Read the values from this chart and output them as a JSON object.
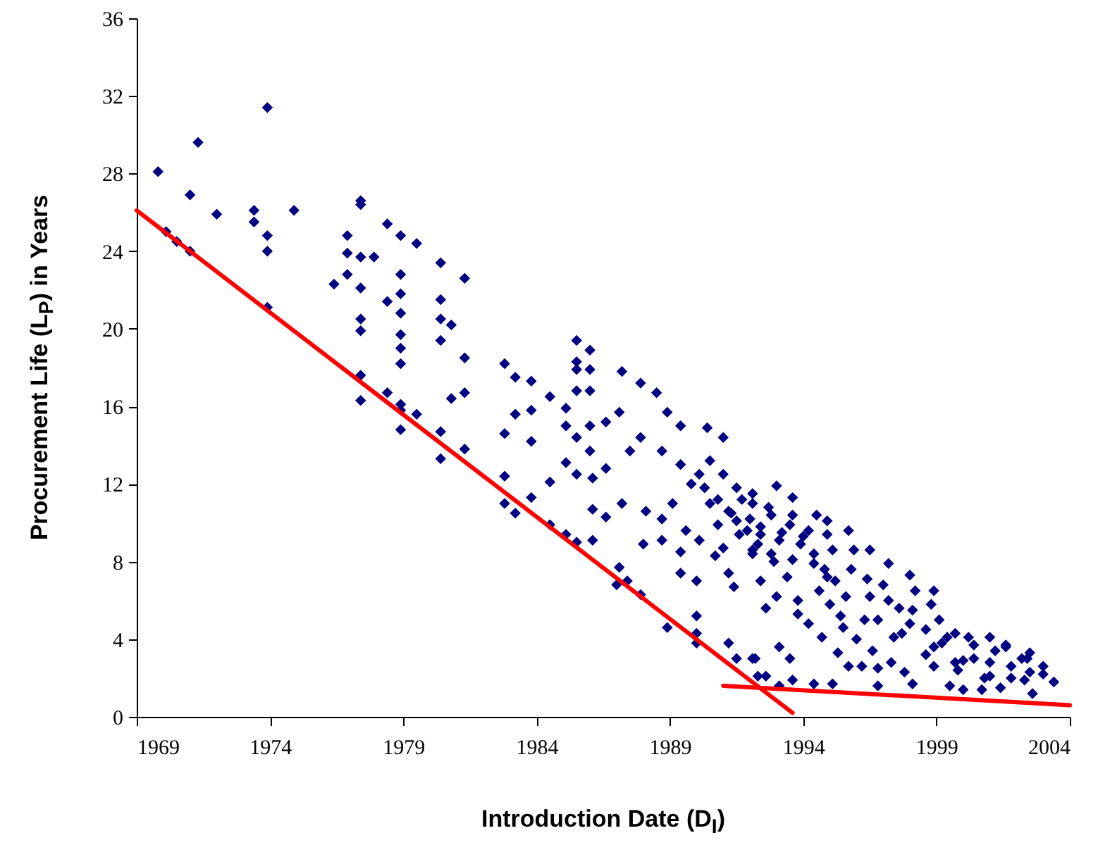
{
  "chart_data": {
    "type": "scatter",
    "xlabel": "Introduction Date (D$_{I}$)",
    "ylabel": "Procurement Life (L$_{P}$) in Years",
    "xlim": [
      1969,
      2004
    ],
    "ylim": [
      0,
      36
    ],
    "xticks": [
      1969,
      1974,
      1979,
      1984,
      1989,
      1994,
      1999,
      2004
    ],
    "yticks": [
      0,
      4,
      8,
      12,
      16,
      20,
      24,
      28,
      32,
      36
    ],
    "series": [
      {
        "color": "#000080",
        "marker": "diamond",
        "x": [
          1990.3,
          1990.8,
          1991.3,
          1991.7,
          1992.0,
          1992.4,
          1992.8,
          1993.2,
          1993.6,
          1994.0,
          1994.4,
          1994.8,
          1991.0,
          1991.6,
          1992.3,
          1992.9,
          1993.4,
          1993.9,
          1994.6,
          1995.2,
          1995.8,
          1996.4,
          1997.0,
          1997.6,
          1998.2,
          1998.8,
          1995.0,
          1995.5,
          1996.0,
          1996.8,
          1997.4,
          1998.0,
          1998.6,
          1999.2,
          1999.8,
          2000.4,
          2001.2,
          2001.8,
          2002.4,
          2003.0,
          2000.0,
          2000.8,
          2001.6,
          2002.2,
          1999.4,
          1996.6,
          1997.8,
          1995.3,
          1993.8,
          1992.6,
          1969.8,
          1971.3,
          1971.0,
          1970.1,
          1970.5,
          1971.0,
          1972.0,
          1973.4,
          1973.4,
          1973.9,
          1973.9,
          1973.9,
          1973.9,
          1974.9,
          1976.4,
          1976.9,
          1976.9,
          1976.9,
          1977.4,
          1977.4,
          1977.4,
          1977.9,
          1977.4,
          1977.4,
          1977.4,
          1977.4,
          1977.4,
          1978.4,
          1978.4,
          1978.9,
          1978.9,
          1978.9,
          1978.9,
          1978.9,
          1978.9,
          1978.9,
          1978.4,
          1978.9,
          1978.9,
          1979.5,
          1978.9,
          1979.5,
          1980.4,
          1980.4,
          1980.4,
          1980.8,
          1980.4,
          1980.4,
          1980.4,
          1980.8,
          1981.3,
          1981.3,
          1981.3,
          1981.3,
          1985.5,
          1985.5,
          1985.5,
          1985.5,
          1986.0,
          1986.0,
          1986.0,
          1982.8,
          1983.2,
          1983.8,
          1984.5,
          1985.1,
          1983.2,
          1983.8,
          1982.8,
          1983.8,
          1985.1,
          1985.5,
          1986.0,
          1986.0,
          1987.2,
          1987.9,
          1988.5,
          1987.1,
          1986.6,
          1985.1,
          1982.8,
          1984.5,
          1985.5,
          1986.1,
          1986.6,
          1983.8,
          1982.8,
          1983.2,
          1986.1,
          1986.6,
          1987.2,
          1984.5,
          1985.1,
          1985.5,
          1986.1,
          1988.1,
          1988.7,
          1988.0,
          1987.1,
          1987.4,
          1987.0,
          1987.9,
          1988.9,
          1990.0,
          1990.0,
          1990.0,
          1991.2,
          1991.5,
          1992.1,
          1992.3,
          1989.4,
          1990.0,
          1990.4,
          1991.0,
          1988.9,
          1989.4,
          1987.9,
          1987.5,
          1988.7,
          1989.4,
          1989.8,
          1990.1,
          1990.5,
          1991.0,
          1990.5,
          1989.1,
          1989.6,
          1990.1,
          1990.7,
          1991.2,
          1991.4,
          1989.4,
          1988.7,
          1990.8,
          1991.2,
          1991.5,
          1991.5,
          1992.1,
          1991.9,
          1992.1,
          1993.0,
          1993.6,
          1994.5,
          1994.9,
          1995.7,
          1995.9,
          1996.5,
          1997.2,
          1998.0,
          1998.9,
          1999.1,
          1999.7,
          2000.2,
          2001.0,
          2001.6,
          2002.5,
          2003.0,
          2003.4,
          1992.2,
          1992.6,
          1993.1,
          1993.6,
          1994.4,
          1995.1,
          1995.7,
          1996.2,
          1996.8,
          1996.8,
          1997.3,
          1998.1,
          1998.9,
          1999.5,
          2000.0,
          2000.7,
          2001.4,
          2002.6,
          2002.3,
          1993.1,
          1993.5,
          1994.2,
          1994.7,
          1995.4,
          1996.3,
          1994.9,
          1995.6,
          1996.5,
          1997.2,
          1998.1,
          1997.7,
          1998.6,
          1998.9,
          1999.7,
          2000.4,
          2001.0,
          2001.8,
          2002.5,
          2001.0,
          1993.8,
          1993.0,
          1992.4,
          1992.1,
          1992.8,
          1993.6,
          1994.4,
          1994.2,
          1993.5,
          1992.7,
          1992.1,
          1992.4,
          1993.1,
          1995.1,
          1994.9
        ],
        "values": [
          11.8,
          11.2,
          10.5,
          11.2,
          10.2,
          9.8,
          10.4,
          9.5,
          10.4,
          9.3,
          8.4,
          7.6,
          8.7,
          9.4,
          8.9,
          8.0,
          7.2,
          8.9,
          6.5,
          7.0,
          7.6,
          7.1,
          6.8,
          5.6,
          6.5,
          5.8,
          5.8,
          4.6,
          4.0,
          5.0,
          4.1,
          4.8,
          3.2,
          3.8,
          2.4,
          3.7,
          3.4,
          2.0,
          3.0,
          2.2,
          2.9,
          2.0,
          3.6,
          3.0,
          4.1,
          3.4,
          2.3,
          3.3,
          5.3,
          5.6,
          28.1,
          29.6,
          26.9,
          25.0,
          24.5,
          24.0,
          25.9,
          26.1,
          25.5,
          31.4,
          24.8,
          24.0,
          21.1,
          26.1,
          22.3,
          24.8,
          23.9,
          22.8,
          26.6,
          26.4,
          23.7,
          23.7,
          22.1,
          20.5,
          19.9,
          17.6,
          16.3,
          25.4,
          21.4,
          24.8,
          22.8,
          21.8,
          20.8,
          19.7,
          19.0,
          18.2,
          16.7,
          16.1,
          15.8,
          15.6,
          14.8,
          24.4,
          23.4,
          21.5,
          20.5,
          20.2,
          19.4,
          14.7,
          13.3,
          16.4,
          22.6,
          18.5,
          16.7,
          13.8,
          19.4,
          18.3,
          17.9,
          16.8,
          18.9,
          17.9,
          16.8,
          18.2,
          17.5,
          17.3,
          16.5,
          15.9,
          15.6,
          15.8,
          14.6,
          14.2,
          15.0,
          14.4,
          15.0,
          13.7,
          17.8,
          17.2,
          16.7,
          15.7,
          15.2,
          13.1,
          12.4,
          12.1,
          12.5,
          12.3,
          12.8,
          11.3,
          11.0,
          10.5,
          10.7,
          10.3,
          11.0,
          9.9,
          9.4,
          9.0,
          9.1,
          10.6,
          10.2,
          8.9,
          7.7,
          7.0,
          6.8,
          6.3,
          4.6,
          5.2,
          4.3,
          3.8,
          3.8,
          3.0,
          3.0,
          2.1,
          7.4,
          7.0,
          14.9,
          14.4,
          15.7,
          15.0,
          14.4,
          13.7,
          13.7,
          13.0,
          12.0,
          12.5,
          13.2,
          12.5,
          11.0,
          11.0,
          9.6,
          9.1,
          8.3,
          7.4,
          6.7,
          8.5,
          9.1,
          9.9,
          10.6,
          11.8,
          10.1,
          11.0,
          9.6,
          8.6,
          11.9,
          11.3,
          10.4,
          10.1,
          9.6,
          8.6,
          8.6,
          7.9,
          7.3,
          6.5,
          5.0,
          4.3,
          4.1,
          4.1,
          3.7,
          3.3,
          2.6,
          1.8,
          3.0,
          2.1,
          1.6,
          1.9,
          1.7,
          1.7,
          2.6,
          2.6,
          1.6,
          2.5,
          2.8,
          1.7,
          2.6,
          1.6,
          1.4,
          1.4,
          1.5,
          1.2,
          1.9,
          3.6,
          3.0,
          4.8,
          4.1,
          5.2,
          5.0,
          7.2,
          6.2,
          6.2,
          6.0,
          5.5,
          4.3,
          4.5,
          3.6,
          2.8,
          3.0,
          2.8,
          2.6,
          2.3,
          2.1,
          6.0,
          6.2,
          7.0,
          8.4,
          8.4,
          8.1,
          7.9,
          9.6,
          9.9,
          10.8,
          11.5,
          9.4,
          9.1,
          8.6,
          9.4
        ]
      },
      {
        "type": "line",
        "marker": "none",
        "color": "#ff0000",
        "x": [
          1969,
          1993.6
        ],
        "values": [
          26.1,
          0.2
        ]
      },
      {
        "type": "line",
        "marker": "none",
        "color": "#ff0000",
        "x": [
          1991,
          2004
        ],
        "values": [
          1.6,
          0.6
        ]
      }
    ]
  }
}
